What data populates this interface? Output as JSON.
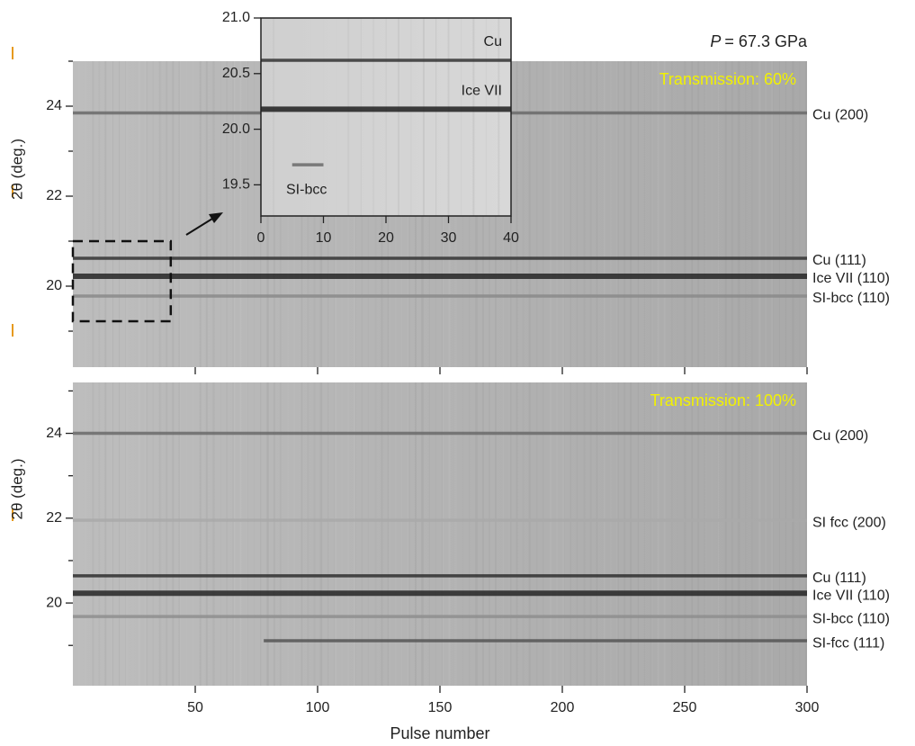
{
  "pressure": {
    "symbol": "P",
    "text": "= 67.3 GPa"
  },
  "chart_data": [
    {
      "type": "diffraction-image",
      "annotation": "Transmission: 60%",
      "annotation_color": "#f2f200",
      "y_label": "2θ (deg.)",
      "xlim": [
        0,
        300
      ],
      "ylim": [
        18.2,
        25
      ],
      "xticks": [
        50,
        100,
        150,
        200,
        250,
        300
      ],
      "xtick_labels": false,
      "yticks": [
        20,
        22,
        24
      ],
      "yminorticks": [
        19,
        21,
        23,
        25
      ],
      "zoom_box": {
        "x": [
          0,
          40
        ],
        "y": [
          19.22,
          21.0
        ]
      },
      "series": [
        {
          "name": "Cu (200)",
          "color": "#6a6a6a",
          "x": [
            0,
            300
          ],
          "values": [
            23.85,
            23.85
          ]
        },
        {
          "name": "Cu (111)",
          "color": "#333333",
          "x": [
            0,
            300
          ],
          "values": [
            20.62,
            20.62
          ]
        },
        {
          "name": "Ice VII (110)",
          "color": "#262626",
          "x": [
            0,
            300
          ],
          "values": [
            20.22,
            20.22
          ]
        },
        {
          "name": "SI-bcc (110)",
          "color": "#8a8a8a",
          "x": [
            0,
            300
          ],
          "values": [
            19.78,
            19.78
          ]
        }
      ]
    },
    {
      "type": "diffraction-image",
      "annotation": "Transmission: 100%",
      "annotation_color": "#f2f200",
      "y_label": "2θ (deg.)",
      "x_label": "Pulse number",
      "xlim": [
        0,
        300
      ],
      "ylim": [
        18.05,
        25.2
      ],
      "xticks": [
        50,
        100,
        150,
        200,
        250,
        300
      ],
      "xtick_labels": true,
      "yticks": [
        20,
        22,
        24
      ],
      "yminorticks": [
        19,
        21,
        23,
        25
      ],
      "series": [
        {
          "name": "Cu (200)",
          "color": "#6a6a6a",
          "x": [
            0,
            300
          ],
          "values": [
            24.0,
            24.0
          ]
        },
        {
          "name": "SI fcc (200)",
          "color": "#a9a9a9",
          "x": [
            0,
            300
          ],
          "values": [
            21.95,
            21.95
          ]
        },
        {
          "name": "Cu (111)",
          "color": "#2e2e2e",
          "x": [
            0,
            300
          ],
          "values": [
            20.64,
            20.64
          ]
        },
        {
          "name": "Ice VII (110)",
          "color": "#262626",
          "x": [
            0,
            300
          ],
          "values": [
            20.23,
            20.23
          ]
        },
        {
          "name": "SI-bcc (110)",
          "color": "#8e8e8e",
          "x": [
            0,
            300
          ],
          "values": [
            19.68,
            19.68
          ]
        },
        {
          "name": "SI-fcc (111)",
          "color": "#555555",
          "x": [
            78,
            300
          ],
          "values": [
            19.11,
            19.11
          ]
        }
      ]
    },
    {
      "type": "diffraction-image",
      "xlim": [
        0,
        40
      ],
      "ylim": [
        19.22,
        21.0
      ],
      "xticks": [
        0,
        10,
        20,
        30,
        40
      ],
      "xtick_labels": true,
      "yticks": [
        19.5,
        {
          "value": 20,
          "label": "20.0"
        },
        20.5,
        {
          "value": 21,
          "label": "21.0"
        }
      ],
      "series": [
        {
          "name": "Cu",
          "color": "#333333",
          "x": [
            0,
            40
          ],
          "values": [
            20.62,
            20.62
          ]
        },
        {
          "name": "Ice VII",
          "color": "#1e1e1e",
          "x": [
            0,
            40
          ],
          "values": [
            20.18,
            20.18
          ]
        },
        {
          "name": "SI-bcc",
          "color": "#6a6a6a",
          "x": [
            5,
            10
          ],
          "values": [
            19.68,
            19.68
          ]
        }
      ]
    }
  ]
}
